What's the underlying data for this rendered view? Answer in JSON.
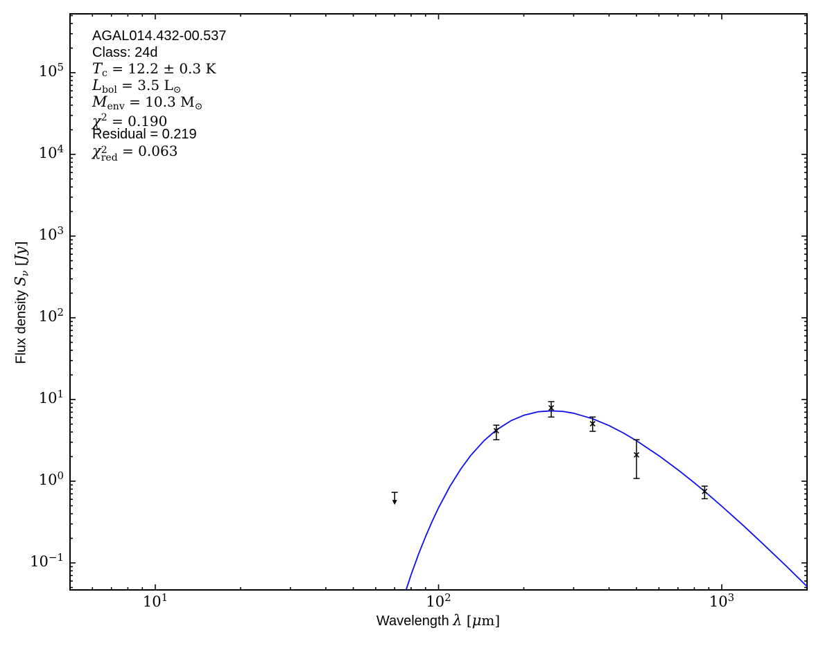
{
  "figure": {
    "background": "#ffffff",
    "text_color": "#000000",
    "annotation": {
      "lines": [
        {
          "name": "source-name",
          "segments": [
            {
              "t": "AGAL014.432-00.537",
              "f": "sans"
            }
          ]
        },
        {
          "name": "class-label",
          "segments": [
            {
              "t": "Class: 24d",
              "f": "sans"
            }
          ]
        },
        {
          "name": "temperature",
          "segments": [
            {
              "t": "T",
              "f": "it"
            },
            {
              "t": "c",
              "f": "sub"
            },
            {
              "t": " = 12.2 ± 0.3 K",
              "f": "rm"
            }
          ]
        },
        {
          "name": "luminosity",
          "segments": [
            {
              "t": "L",
              "f": "it"
            },
            {
              "t": "bol",
              "f": "sub"
            },
            {
              "t": " = 3.5 L",
              "f": "rm"
            },
            {
              "t": "⊙",
              "f": "sub"
            }
          ]
        },
        {
          "name": "envelope-mass",
          "segments": [
            {
              "t": "M",
              "f": "it"
            },
            {
              "t": "env",
              "f": "sub"
            },
            {
              "t": " = 10.3 M",
              "f": "rm"
            },
            {
              "t": "⊙",
              "f": "sub"
            }
          ]
        },
        {
          "name": "chi-squared",
          "segments": [
            {
              "t": "χ",
              "f": "it"
            },
            {
              "t": "2",
              "f": "sup"
            },
            {
              "t": " = 0.190",
              "f": "rm"
            }
          ]
        },
        {
          "name": "residual",
          "segments": [
            {
              "t": "Residual = 0.219",
              "f": "sans"
            }
          ]
        },
        {
          "name": "chi-squared-reduced",
          "segments": [
            {
              "t": "χ",
              "f": "it"
            },
            {
              "f": "stack",
              "sup": "2",
              "sub": "red"
            },
            {
              "t": " = 0.063",
              "f": "rm"
            }
          ]
        }
      ]
    },
    "xlabel_segments": [
      {
        "t": "Wavelength ",
        "f": "sans"
      },
      {
        "t": "λ",
        "f": "it"
      },
      {
        "t": " [",
        "f": "rm"
      },
      {
        "t": "μ",
        "f": "it"
      },
      {
        "t": "m]",
        "f": "rm"
      }
    ],
    "ylabel_segments": [
      {
        "t": "Flux density ",
        "f": "sans"
      },
      {
        "t": "S",
        "f": "it"
      },
      {
        "t": "ν",
        "f": "subit"
      },
      {
        "t": " [",
        "f": "rm"
      },
      {
        "t": "Jy",
        "f": "it"
      },
      {
        "t": "]",
        "f": "rm"
      }
    ]
  },
  "chart_data": {
    "type": "line",
    "title": "",
    "x_scale": "log",
    "y_scale": "log",
    "xlim": [
      5,
      2000
    ],
    "ylim": [
      0.0467,
      525000
    ],
    "xlabel": "Wavelength λ [μm]",
    "ylabel": "Flux density Sν [Jy]",
    "grid": false,
    "legend": false,
    "x_major_ticks": [
      10,
      100,
      1000
    ],
    "x_tick_labels": [
      {
        "base": "10",
        "exp": "1"
      },
      {
        "base": "10",
        "exp": "2"
      },
      {
        "base": "10",
        "exp": "3"
      }
    ],
    "y_major_ticks": [
      100000,
      10000,
      1000,
      100,
      10,
      1,
      0.1
    ],
    "y_tick_labels": [
      {
        "base": "10",
        "exp": "5"
      },
      {
        "base": "10",
        "exp": "4"
      },
      {
        "base": "10",
        "exp": "3"
      },
      {
        "base": "10",
        "exp": "2"
      },
      {
        "base": "10",
        "exp": "1"
      },
      {
        "base": "10",
        "exp": "0"
      },
      {
        "base": "10",
        "exp": "−1"
      }
    ],
    "series": [
      {
        "name": "greybody-fit",
        "type": "line",
        "color": "#0d0dee",
        "model": {
          "T_K": 12.2,
          "beta": 1.75
        },
        "points": [
          [
            70,
            0.0164
          ],
          [
            72,
            0.0229
          ],
          [
            75,
            0.0364
          ],
          [
            80,
            0.0716
          ],
          [
            85,
            0.128
          ],
          [
            90,
            0.21
          ],
          [
            95,
            0.324
          ],
          [
            100,
            0.473
          ],
          [
            110,
            0.879
          ],
          [
            120,
            1.42
          ],
          [
            130,
            2.07
          ],
          [
            145,
            3.15
          ],
          [
            160,
            4.23
          ],
          [
            180,
            5.49
          ],
          [
            200,
            6.41
          ],
          [
            225,
            7.08
          ],
          [
            250,
            7.27
          ],
          [
            275,
            7.14
          ],
          [
            300,
            6.79
          ],
          [
            350,
            5.81
          ],
          [
            400,
            4.79
          ],
          [
            450,
            3.88
          ],
          [
            500,
            3.13
          ],
          [
            600,
            2.05
          ],
          [
            700,
            1.38
          ],
          [
            800,
            0.955
          ],
          [
            870,
            0.75
          ],
          [
            1000,
            0.494
          ],
          [
            1200,
            0.28
          ],
          [
            1400,
            0.17
          ],
          [
            1700,
            0.0895
          ],
          [
            2000,
            0.0515
          ]
        ]
      },
      {
        "name": "photometry",
        "type": "scatter-errorbar",
        "marker": "x",
        "color": "#000000",
        "points": [
          {
            "wavelength_um": 160,
            "flux_jy": 4.15,
            "flux_hi_jy": 4.85,
            "flux_lo_jy": 3.22
          },
          {
            "wavelength_um": 250,
            "flux_jy": 7.9,
            "flux_hi_jy": 9.4,
            "flux_lo_jy": 6.1
          },
          {
            "wavelength_um": 350,
            "flux_jy": 5.05,
            "flux_hi_jy": 6.1,
            "flux_lo_jy": 4.08
          },
          {
            "wavelength_um": 500,
            "flux_jy": 2.1,
            "flux_hi_jy": 3.22,
            "flux_lo_jy": 1.08
          },
          {
            "wavelength_um": 870,
            "flux_jy": 0.75,
            "flux_hi_jy": 0.87,
            "flux_lo_jy": 0.61
          }
        ]
      },
      {
        "name": "upper-limit",
        "type": "upper-limit-arrow",
        "color": "#000000",
        "points": [
          {
            "wavelength_um": 70,
            "flux_jy": 0.73
          }
        ]
      }
    ]
  }
}
